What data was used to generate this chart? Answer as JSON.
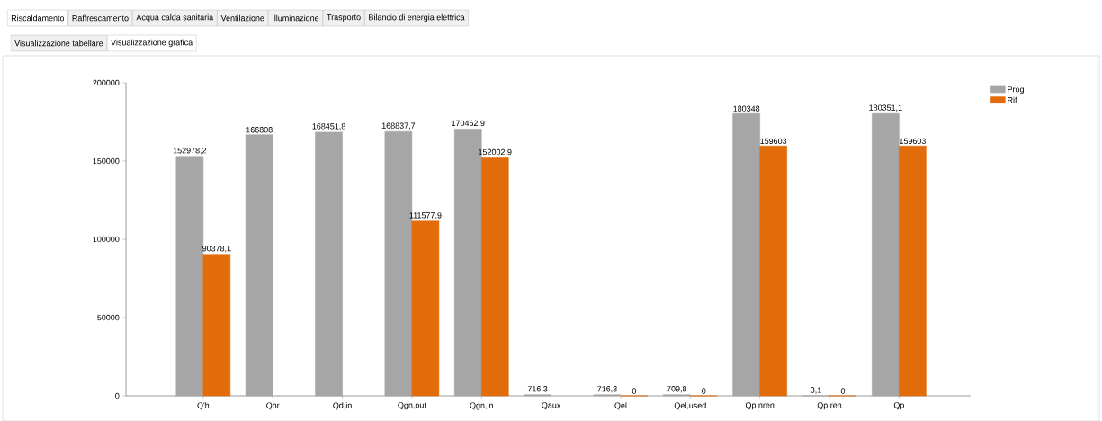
{
  "chart_data": {
    "type": "bar",
    "categories": [
      "Q'h",
      "Qhr",
      "Qd,in",
      "Qgn,out",
      "Qgn,in",
      "Qaux",
      "Qel",
      "Qel,used",
      "Qp,nren",
      "Qp,ren",
      "Qp"
    ],
    "series": [
      {
        "name": "Prog",
        "color": "#a6a6a6",
        "values": [
          152978.2,
          166808,
          168451.8,
          168837.7,
          170462.9,
          716.3,
          716.3,
          709.8,
          180348,
          3.1,
          180351.1
        ],
        "value_labels": [
          "152978,2",
          "166808",
          "168451,8",
          "168837,7",
          "170462,9",
          "716,3",
          "716,3",
          "709,8",
          "180348",
          "3,1",
          "180351,1"
        ]
      },
      {
        "name": "Rif",
        "color": "#e36c0a",
        "values": [
          90378.1,
          null,
          null,
          111577.9,
          152002.9,
          null,
          0,
          0,
          159603,
          0,
          159603
        ],
        "value_labels": [
          "90378,1",
          null,
          null,
          "111577,9",
          "152002,9",
          null,
          "0",
          "0",
          "159603",
          "0",
          "159603"
        ]
      }
    ],
    "ylim": [
      0,
      200000
    ],
    "yticks": [
      0,
      50000,
      100000,
      150000,
      200000
    ],
    "legend": "top right",
    "annotations": [
      "Riscaldamento",
      "Raffrescamento",
      "Acqua calda sanitaria",
      "Ventilazione",
      "Illuminazione",
      "Trasporto",
      "Bilancio di energia elettrica",
      "Visualizzazione tabellare",
      "Visualizzazione grafica"
    ]
  }
}
